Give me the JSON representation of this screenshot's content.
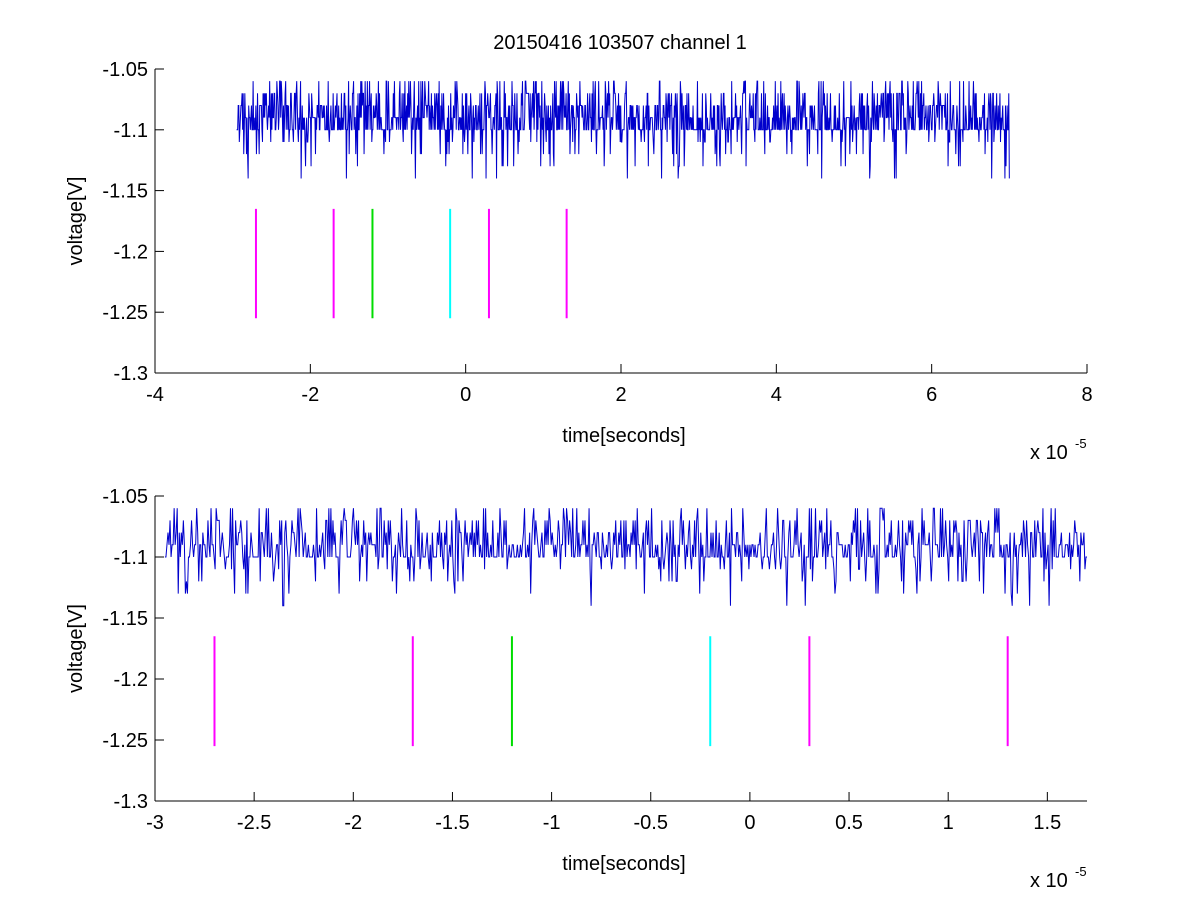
{
  "figure": {
    "title": "20150416 103507 channel 1"
  },
  "colors": {
    "signal": "#0000cc",
    "marker_magenta": "#ff00ff",
    "marker_green": "#00dd00",
    "marker_cyan": "#00ffff",
    "axis": "#000000"
  },
  "chart_data": [
    {
      "type": "line",
      "title": "20150416 103507 channel 1",
      "xlabel": "time[seconds]",
      "ylabel": "voltage[V]",
      "x_exponent_label": "x 10",
      "x_exponent": "-5",
      "xlim": [
        -4,
        8
      ],
      "ylim": [
        -1.3,
        -1.05
      ],
      "xticks": [
        -4,
        -2,
        0,
        2,
        4,
        6,
        8
      ],
      "xtick_labels": [
        "-4",
        "-2",
        "0",
        "2",
        "4",
        "6",
        "8"
      ],
      "yticks": [
        -1.05,
        -1.1,
        -1.15,
        -1.2,
        -1.25,
        -1.3
      ],
      "ytick_labels": [
        "-1.05",
        "-1.1",
        "-1.15",
        "-1.2",
        "-1.25",
        "-1.3"
      ],
      "grid": false,
      "series": [
        {
          "kind": "noise-signal",
          "color": "#0000cc",
          "x_range": [
            -2.95,
            7.0
          ],
          "baseline": -1.1,
          "levels": [
            -1.06,
            -1.08,
            -1.1,
            -1.12,
            -1.14
          ]
        }
      ],
      "markers": [
        {
          "x": -2.7,
          "y_range": [
            -1.255,
            -1.165
          ],
          "color": "#ff00ff"
        },
        {
          "x": -1.7,
          "y_range": [
            -1.255,
            -1.165
          ],
          "color": "#ff00ff"
        },
        {
          "x": -1.2,
          "y_range": [
            -1.255,
            -1.165
          ],
          "color": "#00dd00"
        },
        {
          "x": -0.2,
          "y_range": [
            -1.255,
            -1.165
          ],
          "color": "#00ffff"
        },
        {
          "x": 0.3,
          "y_range": [
            -1.255,
            -1.165
          ],
          "color": "#ff00ff"
        },
        {
          "x": 1.3,
          "y_range": [
            -1.255,
            -1.165
          ],
          "color": "#ff00ff"
        }
      ]
    },
    {
      "type": "line",
      "title": "",
      "xlabel": "time[seconds]",
      "ylabel": "voltage[V]",
      "x_exponent_label": "x 10",
      "x_exponent": "-5",
      "xlim": [
        -3.0,
        1.7
      ],
      "ylim": [
        -1.3,
        -1.05
      ],
      "xticks": [
        -3,
        -2.5,
        -2,
        -1.5,
        -1,
        -0.5,
        0,
        0.5,
        1,
        1.5
      ],
      "xtick_labels": [
        "-3",
        "-2.5",
        "-2",
        "-1.5",
        "-1",
        "-0.5",
        "0",
        "0.5",
        "1",
        "1.5"
      ],
      "yticks": [
        -1.05,
        -1.1,
        -1.15,
        -1.2,
        -1.25,
        -1.3
      ],
      "ytick_labels": [
        "-1.05",
        "-1.1",
        "-1.15",
        "-1.2",
        "-1.25",
        "-1.3"
      ],
      "grid": false,
      "series": [
        {
          "kind": "noise-signal",
          "color": "#0000cc",
          "x_range": [
            -2.95,
            1.7
          ],
          "baseline": -1.1,
          "levels": [
            -1.06,
            -1.08,
            -1.1,
            -1.12,
            -1.14
          ]
        }
      ],
      "markers": [
        {
          "x": -2.7,
          "y_range": [
            -1.255,
            -1.165
          ],
          "color": "#ff00ff"
        },
        {
          "x": -1.7,
          "y_range": [
            -1.255,
            -1.165
          ],
          "color": "#ff00ff"
        },
        {
          "x": -1.2,
          "y_range": [
            -1.255,
            -1.165
          ],
          "color": "#00dd00"
        },
        {
          "x": -0.2,
          "y_range": [
            -1.255,
            -1.165
          ],
          "color": "#00ffff"
        },
        {
          "x": 0.3,
          "y_range": [
            -1.255,
            -1.165
          ],
          "color": "#ff00ff"
        },
        {
          "x": 1.3,
          "y_range": [
            -1.255,
            -1.165
          ],
          "color": "#ff00ff"
        }
      ]
    }
  ]
}
